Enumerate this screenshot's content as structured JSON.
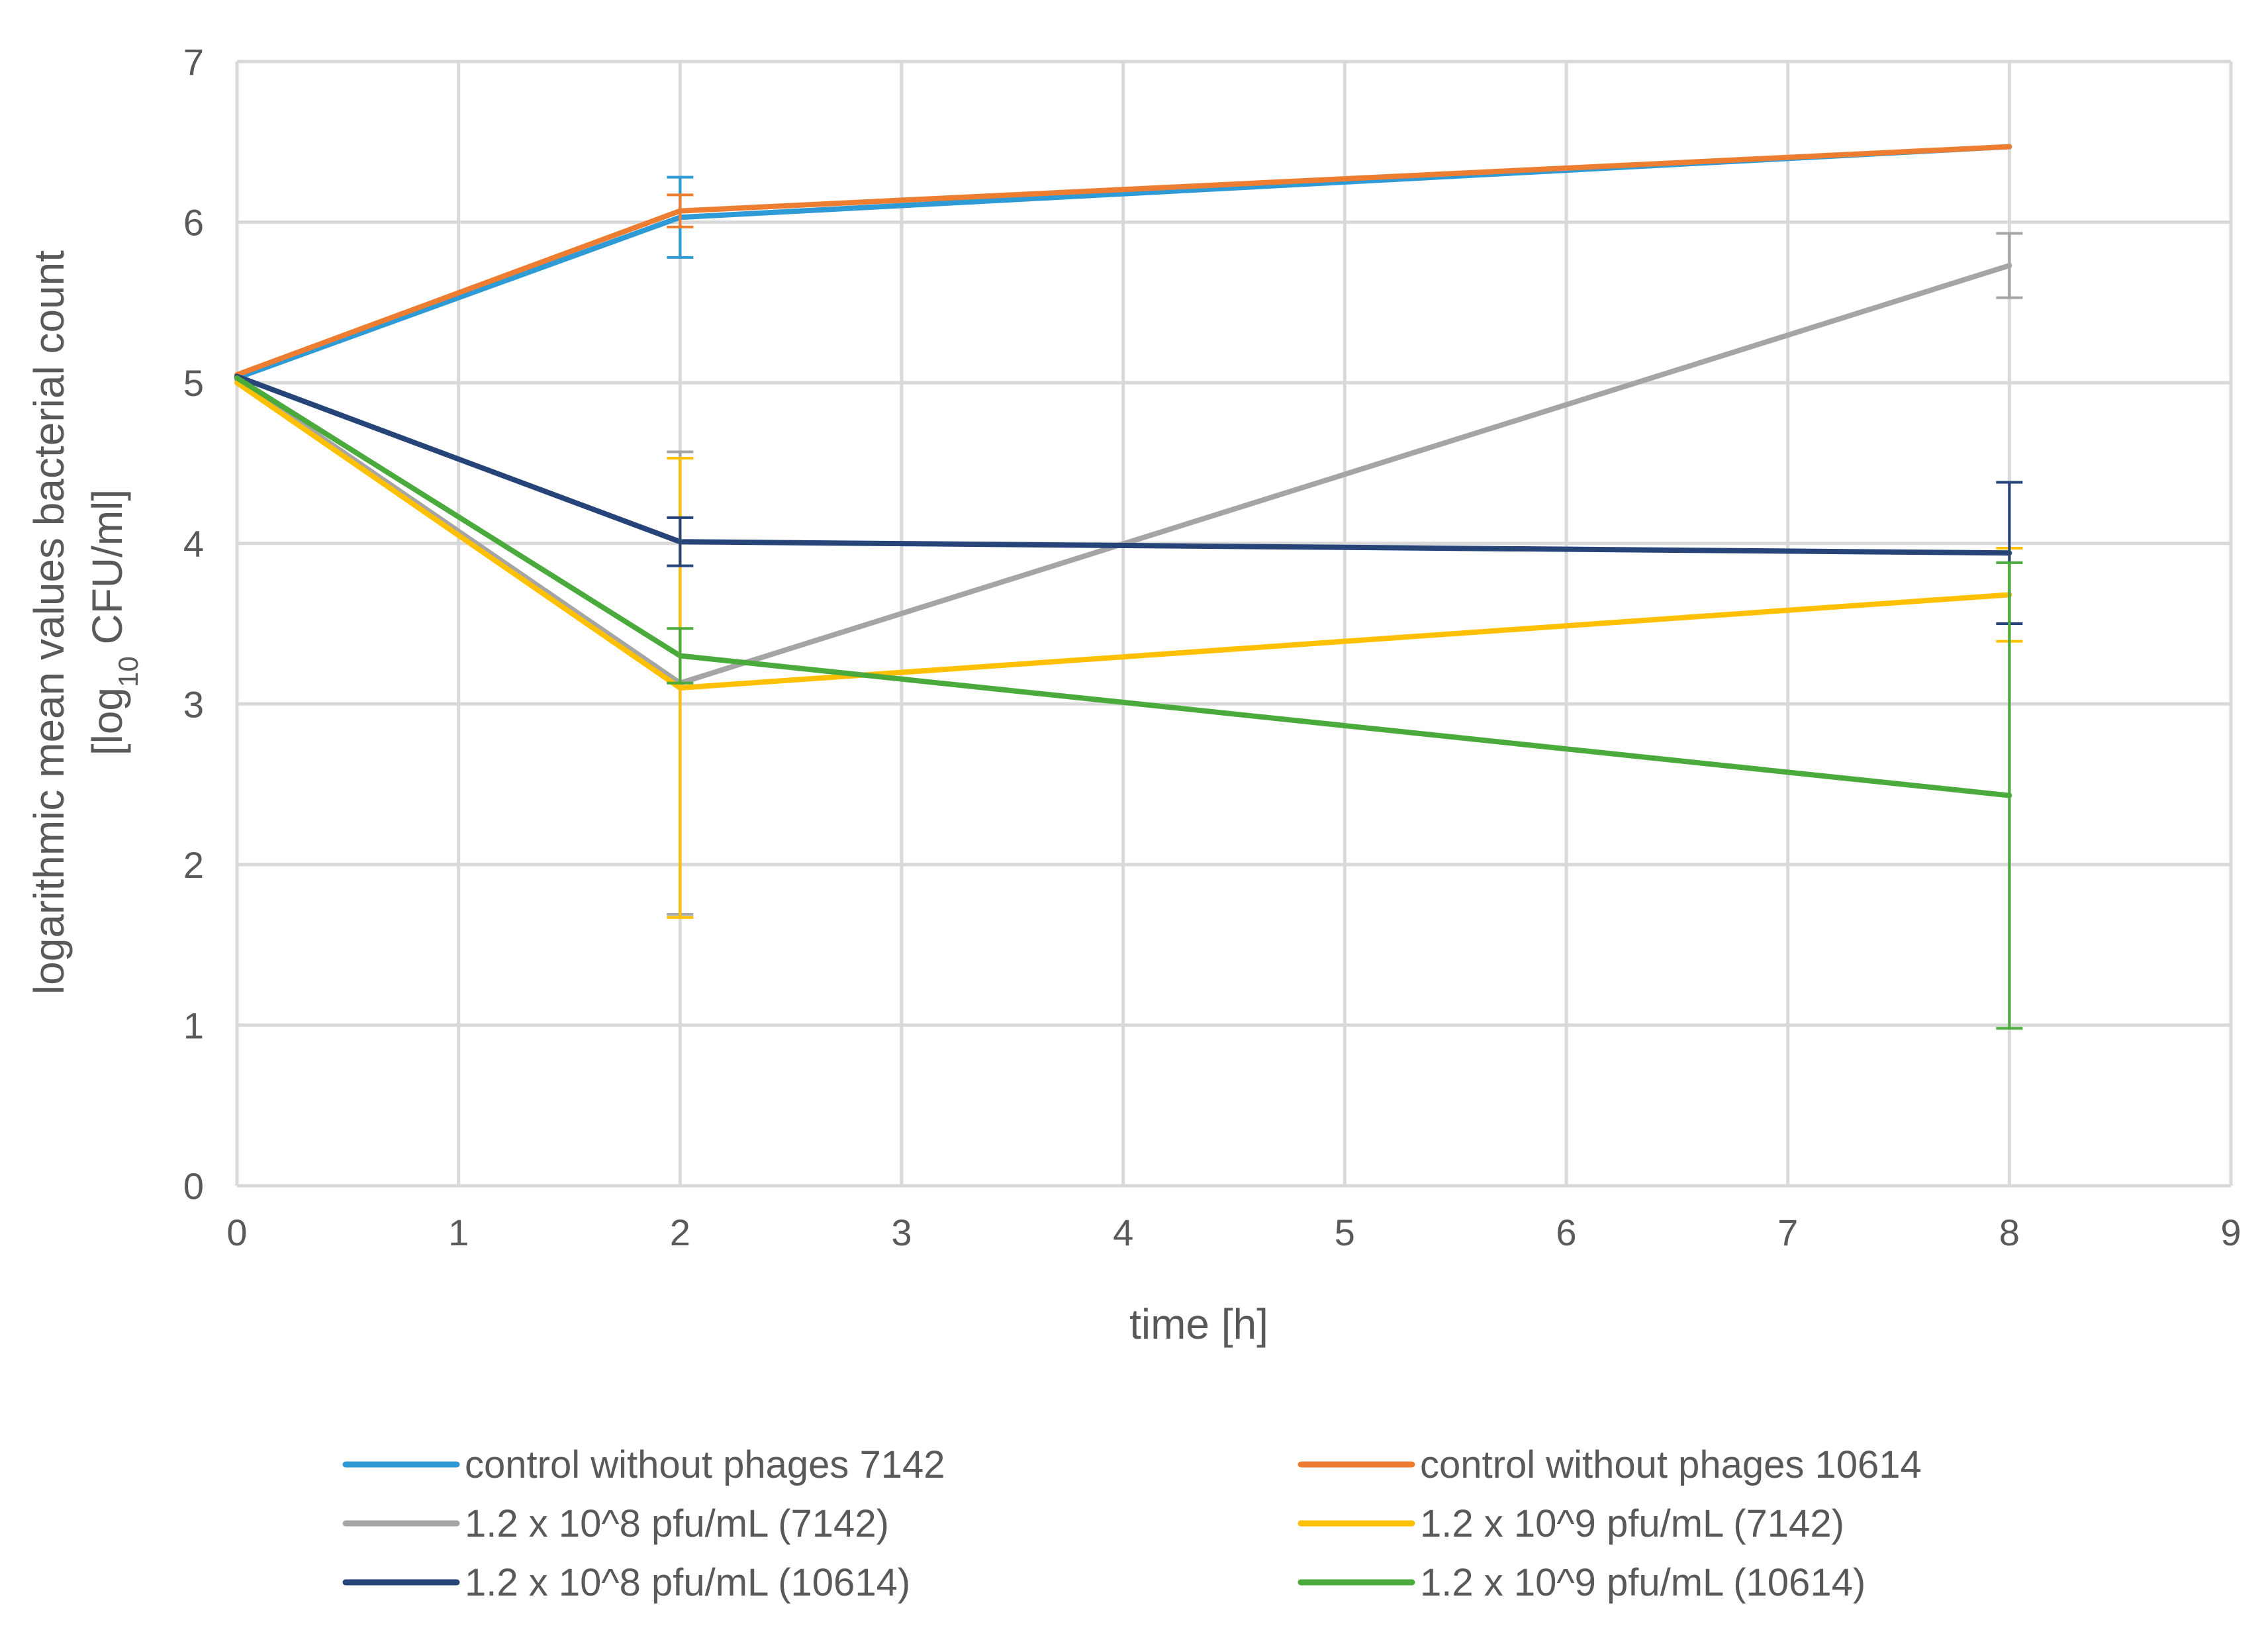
{
  "chart_data": {
    "type": "line",
    "xlabel": "time [h]",
    "ylabel": {
      "line1": "logarithmic mean values bacterial count",
      "line2_pre": "[log",
      "line2_sub": "10",
      "line2_post": " CFU/ml]"
    },
    "xlim": [
      0,
      9
    ],
    "ylim": [
      0,
      7
    ],
    "xticks": [
      0,
      1,
      2,
      3,
      4,
      5,
      6,
      7,
      8,
      9
    ],
    "yticks": [
      0,
      1,
      2,
      3,
      4,
      5,
      6,
      7
    ],
    "grid": true,
    "legend_position": "bottom",
    "series": [
      {
        "name": "control without phages 7142",
        "color": "#2E9BD6",
        "x": [
          0,
          2,
          8
        ],
        "y": [
          5.03,
          6.03,
          6.47
        ],
        "err": [
          0,
          0.25,
          0
        ]
      },
      {
        "name": "control without phages 10614",
        "color": "#ED7D31",
        "x": [
          0,
          2,
          8
        ],
        "y": [
          5.05,
          6.07,
          6.47
        ],
        "err": [
          0,
          0.1,
          0
        ]
      },
      {
        "name": "1.2 x 10^8 pfu/mL (7142)",
        "color": "#A5A5A5",
        "x": [
          0,
          2,
          8
        ],
        "y": [
          5.02,
          3.13,
          5.73
        ],
        "err": [
          0,
          1.44,
          0.2
        ]
      },
      {
        "name": "1.2 x 10^9 pfu/mL (7142)",
        "color": "#FFC000",
        "x": [
          0,
          2,
          8
        ],
        "y": [
          5.0,
          3.1,
          3.68
        ],
        "err": [
          0,
          1.43,
          0.29
        ]
      },
      {
        "name": "1.2 x 10^8 pfu/mL (10614)",
        "color": "#264478",
        "x": [
          0,
          2,
          8
        ],
        "y": [
          5.04,
          4.01,
          3.94
        ],
        "err": [
          0,
          0.15,
          0.44
        ]
      },
      {
        "name": "1.2 x 10^9 pfu/mL (10614)",
        "color": "#4AAA3B",
        "x": [
          0,
          2,
          8
        ],
        "y": [
          5.03,
          3.3,
          2.43
        ],
        "err": [
          0,
          0.17,
          1.45
        ]
      }
    ]
  },
  "colors": {
    "grid": "#D9D9D9",
    "text": "#595959"
  }
}
